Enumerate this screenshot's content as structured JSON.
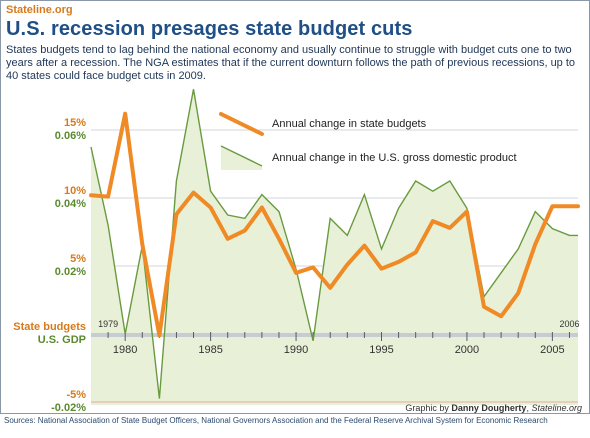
{
  "site_label": "Stateline.org",
  "title": "U.S. recession presages state budget cuts",
  "description": "States budgets tend to lag behind the national economy and usually continue to struggle with budget cuts one to two years after a recession. The NGA estimates that if the current downturn follows the path of previous recessions, up to 40 states could face budget cuts in 2009.",
  "credit": {
    "prefix": "Graphic by",
    "author": "Danny Dougherty",
    "source": "Stateline.org"
  },
  "sources": "Sources: National Association of State Budget Officers, National Governors Association and the Federal Reserve Archival System for Economic Research",
  "colors": {
    "budget": "#f08a24",
    "gdp": "#6a9a3f",
    "gdp_fill": "#e8f1d8",
    "title": "#1f4f86",
    "label_orange": "#d67a1d",
    "label_green": "#5b8a2e"
  },
  "chart_data": {
    "type": "line",
    "x_range": [
      1978,
      2006.5
    ],
    "x_ticks": [
      1980,
      1985,
      1990,
      1995,
      2000,
      2005
    ],
    "x_tick_labels": [
      "1980",
      "1985",
      "1990",
      "1995",
      "2000",
      "2005"
    ],
    "start_label": "1979",
    "end_label": "2006",
    "legend": {
      "placement": "top-center",
      "budget_label": "Annual change in state budgets",
      "gdp_label": "Annual change in the U.S. gross domestic product"
    },
    "budget_axis": {
      "title": "State budgets",
      "ticks": [
        15,
        10,
        5,
        -5
      ],
      "tick_labels": [
        "15%",
        "10%",
        "5%",
        "-5%"
      ],
      "range": [
        -5,
        18
      ]
    },
    "gdp_axis": {
      "title": "U.S. GDP",
      "ticks": [
        0.06,
        0.04,
        0.02,
        -0.02
      ],
      "tick_labels": [
        "0.06%",
        "0.04%",
        "0.02%",
        "-0.02%"
      ],
      "range": [
        -0.02,
        0.075
      ]
    },
    "series": [
      {
        "name": "Annual change in state budgets",
        "axis": "budget",
        "x": [
          1978,
          1979,
          1980,
          1981,
          1982,
          1983,
          1984,
          1985,
          1986,
          1987,
          1988,
          1989,
          1990,
          1991,
          1992,
          1993,
          1994,
          1995,
          1996,
          1997,
          1998,
          1999,
          2000,
          2001,
          2002,
          2003,
          2004,
          2005,
          2006
        ],
        "values": [
          10.2,
          10.1,
          16.2,
          6.6,
          -0.1,
          8.8,
          10.4,
          9.3,
          7.0,
          7.6,
          9.3,
          7.0,
          4.5,
          4.9,
          3.4,
          5.1,
          6.5,
          4.8,
          5.3,
          6.0,
          8.3,
          7.8,
          9.0,
          2.0,
          1.3,
          3.0,
          6.6,
          9.4,
          9.4
        ],
        "draw_end": 2006.5
      },
      {
        "name": "Annual change in the U.S. gross domestic product",
        "axis": "gdp",
        "x": [
          1978,
          1979,
          1980,
          1981,
          1982,
          1983,
          1984,
          1985,
          1986,
          1987,
          1988,
          1989,
          1990,
          1991,
          1992,
          1993,
          1994,
          1995,
          1996,
          1997,
          1998,
          1999,
          2000,
          2001,
          2002,
          2003,
          2004,
          2005,
          2006
        ],
        "values": [
          0.055,
          0.032,
          0.0,
          0.026,
          -0.019,
          0.045,
          0.072,
          0.042,
          0.035,
          0.034,
          0.041,
          0.036,
          0.019,
          -0.002,
          0.034,
          0.029,
          0.041,
          0.025,
          0.037,
          0.045,
          0.042,
          0.045,
          0.037,
          0.011,
          0.018,
          0.025,
          0.036,
          0.031,
          0.029
        ],
        "draw_end": 2006.5
      }
    ]
  }
}
